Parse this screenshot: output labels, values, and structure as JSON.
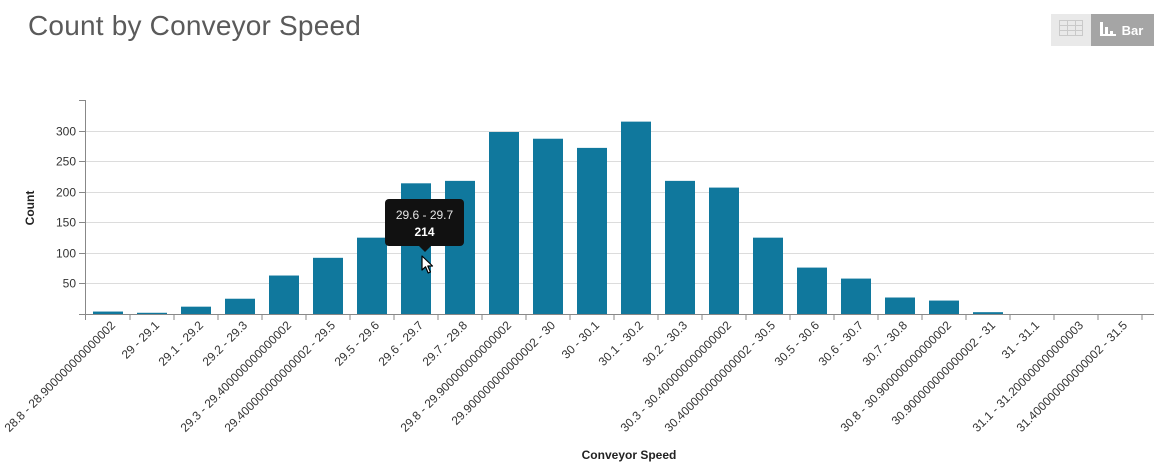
{
  "page": {
    "title": "Count by Conveyor Speed"
  },
  "toolbar": {
    "table_icon": "table-grid-icon",
    "bar_icon": "bar-chart-icon",
    "bar_label": "Bar"
  },
  "colors": {
    "bar": "#10789d",
    "grid": "#dcdcdc",
    "axis": "#888888",
    "text": "#333333"
  },
  "tooltip": {
    "category": "29.6 - 29.7",
    "value": "214"
  },
  "chart_data": {
    "type": "bar",
    "title": "Count by Conveyor Speed",
    "xlabel": "Conveyor Speed",
    "ylabel": "Count",
    "ylim": [
      0,
      350
    ],
    "yticks": [
      50,
      100,
      150,
      200,
      250,
      300
    ],
    "grid": true,
    "categories": [
      "28.8 - 28.900000000000002",
      "29 - 29.1",
      "29.1 - 29.2",
      "29.2 - 29.3",
      "29.3 - 29.400000000000002",
      "29.400000000000002 - 29.5",
      "29.5 - 29.6",
      "29.6 - 29.7",
      "29.7 - 29.8",
      "29.8 - 29.900000000000002",
      "29.900000000000002 - 30",
      "30 - 30.1",
      "30.1 - 30.2",
      "30.2 - 30.3",
      "30.3 - 30.400000000000002",
      "30.400000000000002 - 30.5",
      "30.5 - 30.6",
      "30.6 - 30.7",
      "30.7 - 30.8",
      "30.8 - 30.900000000000002",
      "30.900000000000002 - 31",
      "31 - 31.1",
      "31.1 - 31.200000000000003",
      "31.400000000000002 - 31.5"
    ],
    "values": [
      4,
      2,
      12,
      25,
      63,
      92,
      125,
      214,
      218,
      298,
      287,
      272,
      315,
      218,
      207,
      125,
      76,
      58,
      27,
      22,
      3,
      0,
      0,
      0
    ]
  }
}
